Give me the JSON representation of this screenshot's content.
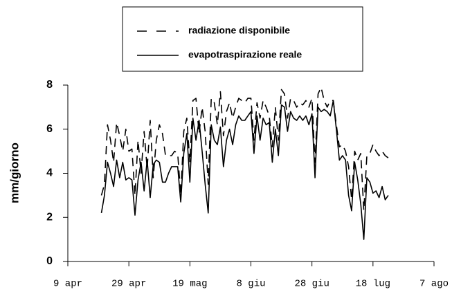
{
  "chart_data": {
    "type": "line",
    "y_label": "mm/giorno",
    "x": [
      11,
      12,
      13,
      14,
      15,
      16,
      17,
      18,
      19,
      20,
      21,
      22,
      23,
      24,
      25,
      26,
      27,
      28,
      29,
      30,
      31,
      32,
      33,
      34,
      35,
      36,
      37,
      38,
      39,
      40,
      41,
      42,
      43,
      44,
      45,
      46,
      47,
      48,
      49,
      50,
      51,
      52,
      53,
      54,
      55,
      56,
      57,
      58,
      59,
      60,
      61,
      62,
      63,
      64,
      65,
      66,
      67,
      68,
      69,
      70,
      71,
      72,
      73,
      74,
      75,
      76,
      77,
      78,
      79,
      80,
      81,
      82,
      83,
      84,
      85,
      86,
      87,
      88,
      89,
      90,
      91,
      92,
      93,
      94,
      95,
      96,
      97,
      98,
      99,
      100,
      101,
      102,
      103,
      104,
      105
    ],
    "series": [
      {
        "name": "radiazione disponibile",
        "color": "#000000",
        "dashed": true,
        "values": [
          3.0,
          3.5,
          6.2,
          5.5,
          4.5,
          6.3,
          5.7,
          5.0,
          6.0,
          5.0,
          5.1,
          3.0,
          5.5,
          4.0,
          5.9,
          4.2,
          6.4,
          3.8,
          5.5,
          6.2,
          5.8,
          4.8,
          4.8,
          4.8,
          5.0,
          4.9,
          3.0,
          5.9,
          6.5,
          4.5,
          7.3,
          7.4,
          5.8,
          7.0,
          5.9,
          3.5,
          7.4,
          7.2,
          6.2,
          7.7,
          5.7,
          6.8,
          7.2,
          6.5,
          7.0,
          7.4,
          7.3,
          7.2,
          7.4,
          7.4,
          5.5,
          7.2,
          6.5,
          7.3,
          7.0,
          6.6,
          5.2,
          7.0,
          5.5,
          7.8,
          7.6,
          6.5,
          7.4,
          7.3,
          7.0,
          7.2,
          7.1,
          7.3,
          7.0,
          7.4,
          4.5,
          7.6,
          7.9,
          7.3,
          7.0,
          7.3,
          7.3,
          6.2,
          5.2,
          5.3,
          5.0,
          4.3,
          2.8,
          5.0,
          4.6,
          4.9,
          2.3,
          4.8,
          4.9,
          5.3,
          5.0,
          4.8,
          5.0,
          4.8,
          4.7
        ]
      },
      {
        "name": "evapotraspirazione reale",
        "color": "#000000",
        "dashed": false,
        "values": [
          2.2,
          3.0,
          4.5,
          4.0,
          3.4,
          4.6,
          3.8,
          4.5,
          3.7,
          3.8,
          3.7,
          2.1,
          3.7,
          4.5,
          3.2,
          4.6,
          2.9,
          4.4,
          4.6,
          4.5,
          3.6,
          3.6,
          4.0,
          4.3,
          4.3,
          4.3,
          2.7,
          4.9,
          5.8,
          3.6,
          6.5,
          5.5,
          6.4,
          5.0,
          3.5,
          2.2,
          6.2,
          5.5,
          5.3,
          6.1,
          4.3,
          5.5,
          6.0,
          5.3,
          6.2,
          6.6,
          6.4,
          6.4,
          6.6,
          6.8,
          4.9,
          6.6,
          5.5,
          6.5,
          6.2,
          6.3,
          4.5,
          6.0,
          4.8,
          7.1,
          7.0,
          5.9,
          6.8,
          6.5,
          6.4,
          6.6,
          6.4,
          6.6,
          6.2,
          6.7,
          3.8,
          7.0,
          6.8,
          6.9,
          6.8,
          6.6,
          7.3,
          6.0,
          4.6,
          4.8,
          4.6,
          3.0,
          2.3,
          4.5,
          3.7,
          2.6,
          1.0,
          3.8,
          3.6,
          3.1,
          3.2,
          2.9,
          3.4,
          2.8,
          3.0
        ]
      }
    ],
    "xlim": [
      0,
      120
    ],
    "xticks": [
      {
        "value": 0,
        "label": "9 apr"
      },
      {
        "value": 20,
        "label": "29 apr"
      },
      {
        "value": 40,
        "label": "19 mag"
      },
      {
        "value": 60,
        "label": "8 giu"
      },
      {
        "value": 80,
        "label": "28 giu"
      },
      {
        "value": 100,
        "label": "18 lug"
      },
      {
        "value": 120,
        "label": "7 ago"
      }
    ],
    "ylim": [
      0,
      8
    ],
    "yticks": [
      0,
      2,
      4,
      6,
      8
    ]
  }
}
